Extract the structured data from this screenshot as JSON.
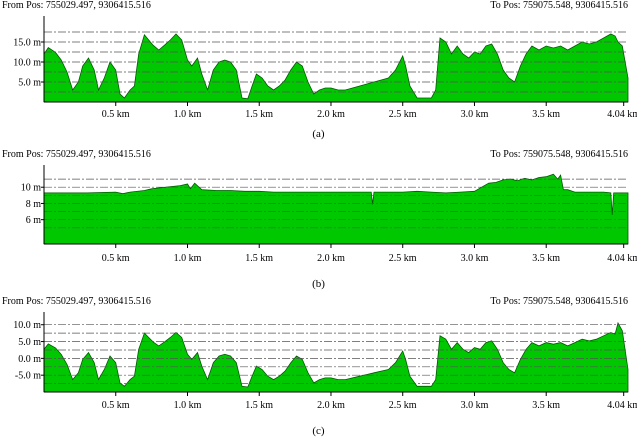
{
  "charts": [
    {
      "from_label": "From Pos: 755029.497, 9306415.516",
      "to_label": "To Pos: 759075.548, 9306415.516",
      "caption": "(a)"
    },
    {
      "from_label": "From Pos: 755029.497, 9306415.516",
      "to_label": "To Pos: 759075.548, 9306415.516",
      "caption": "(b)"
    },
    {
      "from_label": "From Pos: 755029.497, 9306415.516",
      "to_label": "To Pos: 759075.548, 9306415.516",
      "caption": "(c)"
    }
  ],
  "colors": {
    "fill": "#00c800",
    "stroke": "#005a00",
    "grid": "#555555",
    "axis": "#000000"
  },
  "chart_data": [
    {
      "type": "area",
      "xlabel": "",
      "ylabel": "",
      "xlim": [
        0,
        4.07
      ],
      "ylim": [
        0,
        20
      ],
      "grid": true,
      "x_ticks": [
        0.5,
        1.0,
        1.5,
        2.0,
        2.5,
        3.0,
        3.5,
        4.04
      ],
      "x_tick_labels": [
        "0.5 km",
        "1.0 km",
        "1.5 km",
        "2.0 km",
        "2.5 km",
        "3.0 km",
        "3.5 km",
        "4.04 km"
      ],
      "y_ticks": [
        5,
        10,
        15
      ],
      "y_tick_labels": [
        "5.0 m",
        "10.0 m",
        "15.0 m"
      ],
      "grid_lines": [
        2.5,
        5,
        7.5,
        10,
        12.5,
        15,
        17.5
      ],
      "x": [
        0,
        0.03,
        0.08,
        0.12,
        0.16,
        0.2,
        0.24,
        0.27,
        0.31,
        0.35,
        0.38,
        0.42,
        0.46,
        0.5,
        0.53,
        0.56,
        0.6,
        0.63,
        0.66,
        0.7,
        0.73,
        0.76,
        0.8,
        0.84,
        0.88,
        0.92,
        0.96,
        1.0,
        1.03,
        1.07,
        1.1,
        1.14,
        1.18,
        1.22,
        1.26,
        1.3,
        1.34,
        1.38,
        1.42,
        1.45,
        1.48,
        1.52,
        1.56,
        1.6,
        1.64,
        1.68,
        1.72,
        1.76,
        1.8,
        1.84,
        1.88,
        1.92,
        1.96,
        2.0,
        2.05,
        2.1,
        2.15,
        2.2,
        2.25,
        2.3,
        2.35,
        2.4,
        2.45,
        2.5,
        2.52,
        2.55,
        2.6,
        2.65,
        2.7,
        2.73,
        2.76,
        2.8,
        2.84,
        2.88,
        2.92,
        2.96,
        3.0,
        3.04,
        3.08,
        3.12,
        3.16,
        3.2,
        3.24,
        3.28,
        3.32,
        3.36,
        3.4,
        3.45,
        3.5,
        3.55,
        3.6,
        3.65,
        3.7,
        3.75,
        3.8,
        3.85,
        3.9,
        3.95,
        3.98,
        4.0,
        4.03,
        4.07
      ],
      "values": [
        12.0,
        13.6,
        12.4,
        10.5,
        7.5,
        3.0,
        5.0,
        9.0,
        11.0,
        8.0,
        3.0,
        6.0,
        10.0,
        8.0,
        2.0,
        1.0,
        3.0,
        4.0,
        12.0,
        16.8,
        15.5,
        14.2,
        13.0,
        14.2,
        15.5,
        17.0,
        15.5,
        10.5,
        9.0,
        11.0,
        7.0,
        3.0,
        8.0,
        10.0,
        10.5,
        10.0,
        8.0,
        1.0,
        0.8,
        4.0,
        7.0,
        6.0,
        4.0,
        3.0,
        4.0,
        5.5,
        8.0,
        10.0,
        9.0,
        5.0,
        2.0,
        3.0,
        3.5,
        3.5,
        3.0,
        3.0,
        3.5,
        4.0,
        4.5,
        5.0,
        5.5,
        6.0,
        8.0,
        11.5,
        9.0,
        4.0,
        1.0,
        1.0,
        1.0,
        3.0,
        16.0,
        15.0,
        12.0,
        14.0,
        12.0,
        11.0,
        12.5,
        12.0,
        14.0,
        14.5,
        12.0,
        8.0,
        6.0,
        5.0,
        9.0,
        12.0,
        14.0,
        13.0,
        14.0,
        13.5,
        14.0,
        13.0,
        14.0,
        15.0,
        14.5,
        15.0,
        16.0,
        17.0,
        16.5,
        15.0,
        14.0,
        6.0
      ]
    },
    {
      "type": "area",
      "xlabel": "",
      "ylabel": "",
      "xlim": [
        0,
        4.07
      ],
      "ylim": [
        3,
        12
      ],
      "grid": true,
      "x_ticks": [
        0.5,
        1.0,
        1.5,
        2.0,
        2.5,
        3.0,
        3.5,
        4.04
      ],
      "x_tick_labels": [
        "0.5 km",
        "1.0 km",
        "1.5 km",
        "2.0 km",
        "2.5 km",
        "3.0 km",
        "3.5 km",
        "4.04 km"
      ],
      "y_ticks": [
        6,
        8,
        10
      ],
      "y_tick_labels": [
        "6 m",
        "8 m",
        "10 m"
      ],
      "grid_lines": [
        5,
        6,
        7,
        8,
        9,
        10,
        11
      ],
      "x": [
        0,
        0.1,
        0.2,
        0.3,
        0.4,
        0.5,
        0.55,
        0.6,
        0.7,
        0.75,
        0.8,
        0.85,
        0.9,
        0.95,
        1.0,
        1.02,
        1.05,
        1.1,
        1.2,
        1.3,
        1.4,
        1.5,
        1.6,
        1.7,
        1.8,
        1.9,
        2.0,
        2.1,
        2.2,
        2.28,
        2.29,
        2.3,
        2.4,
        2.5,
        2.6,
        2.7,
        2.8,
        2.9,
        3.0,
        3.05,
        3.1,
        3.15,
        3.2,
        3.25,
        3.3,
        3.35,
        3.4,
        3.45,
        3.5,
        3.55,
        3.58,
        3.6,
        3.62,
        3.65,
        3.7,
        3.8,
        3.9,
        3.95,
        3.96,
        3.97,
        4.0,
        4.07
      ],
      "values": [
        9.3,
        9.3,
        9.3,
        9.3,
        9.35,
        9.4,
        9.2,
        9.4,
        9.6,
        9.8,
        9.9,
        10.0,
        10.1,
        10.2,
        10.4,
        9.8,
        10.5,
        9.7,
        9.6,
        9.6,
        9.5,
        9.5,
        9.4,
        9.4,
        9.4,
        9.4,
        9.4,
        9.4,
        9.4,
        9.4,
        7.9,
        9.4,
        9.4,
        9.4,
        9.5,
        9.4,
        9.3,
        9.4,
        9.5,
        10.0,
        10.5,
        10.6,
        10.9,
        11.0,
        10.8,
        11.1,
        10.9,
        11.2,
        11.3,
        11.6,
        11.0,
        11.5,
        9.7,
        9.7,
        9.4,
        9.4,
        9.4,
        9.3,
        6.6,
        9.3,
        9.3,
        9.3
      ]
    },
    {
      "type": "area",
      "xlabel": "",
      "ylabel": "",
      "xlim": [
        0,
        4.07
      ],
      "ylim": [
        -10,
        12
      ],
      "grid": true,
      "x_ticks": [
        0.5,
        1.0,
        1.5,
        2.0,
        2.5,
        3.0,
        3.5,
        4.04
      ],
      "x_tick_labels": [
        "0.5 km",
        "1.0 km",
        "1.5 km",
        "2.0 km",
        "2.5 km",
        "3.0 km",
        "3.5 km",
        "4.04 km"
      ],
      "y_ticks": [
        -5,
        0,
        5,
        10
      ],
      "y_tick_labels": [
        "-5.0 m",
        "0.0 m",
        "5.0 m",
        "10.0 m"
      ],
      "grid_lines": [
        -7.5,
        -5,
        -2.5,
        0,
        2.5,
        5,
        7.5,
        10
      ],
      "x": [
        0,
        0.03,
        0.08,
        0.12,
        0.16,
        0.2,
        0.24,
        0.27,
        0.31,
        0.35,
        0.38,
        0.42,
        0.46,
        0.5,
        0.53,
        0.56,
        0.6,
        0.63,
        0.66,
        0.7,
        0.73,
        0.76,
        0.8,
        0.84,
        0.88,
        0.92,
        0.96,
        1.0,
        1.03,
        1.07,
        1.1,
        1.14,
        1.18,
        1.22,
        1.26,
        1.3,
        1.34,
        1.38,
        1.42,
        1.45,
        1.48,
        1.52,
        1.56,
        1.6,
        1.64,
        1.68,
        1.72,
        1.76,
        1.8,
        1.84,
        1.88,
        1.92,
        1.96,
        2.0,
        2.05,
        2.1,
        2.15,
        2.2,
        2.25,
        2.3,
        2.35,
        2.4,
        2.45,
        2.5,
        2.52,
        2.55,
        2.6,
        2.65,
        2.7,
        2.73,
        2.76,
        2.8,
        2.84,
        2.88,
        2.92,
        2.96,
        3.0,
        3.04,
        3.08,
        3.12,
        3.16,
        3.2,
        3.24,
        3.28,
        3.32,
        3.36,
        3.4,
        3.45,
        3.5,
        3.55,
        3.6,
        3.65,
        3.7,
        3.75,
        3.8,
        3.85,
        3.9,
        3.95,
        3.98,
        4.0,
        4.03,
        4.07
      ],
      "values": [
        2.7,
        4.3,
        3.1,
        1.2,
        -1.8,
        -6.3,
        -4.3,
        -0.3,
        1.7,
        -1.3,
        -6.3,
        -3.3,
        0.7,
        -1.3,
        -7.3,
        -8.3,
        -6.3,
        -5.3,
        2.7,
        7.5,
        6.2,
        4.9,
        3.7,
        4.9,
        6.2,
        7.7,
        6.2,
        1.2,
        -0.3,
        1.7,
        -2.3,
        -6.3,
        -1.3,
        0.7,
        1.2,
        0.7,
        -1.3,
        -8.3,
        -8.5,
        -5.3,
        -2.3,
        -3.3,
        -5.3,
        -6.3,
        -5.3,
        -3.8,
        -1.3,
        0.7,
        -0.3,
        -4.3,
        -7.3,
        -6.3,
        -5.8,
        -5.8,
        -6.3,
        -6.3,
        -5.8,
        -5.3,
        -4.8,
        -4.3,
        -3.8,
        -3.3,
        -1.3,
        2.2,
        -0.3,
        -5.3,
        -8.3,
        -8.3,
        -8.3,
        -6.3,
        6.7,
        5.7,
        2.7,
        4.7,
        2.7,
        1.7,
        3.2,
        2.7,
        4.7,
        5.2,
        2.7,
        -1.3,
        -3.3,
        -4.3,
        -0.3,
        2.7,
        4.7,
        3.7,
        4.7,
        4.2,
        4.7,
        3.7,
        4.7,
        5.7,
        5.2,
        5.7,
        6.7,
        7.7,
        7.2,
        10.5,
        8.2,
        -3.3
      ]
    }
  ]
}
